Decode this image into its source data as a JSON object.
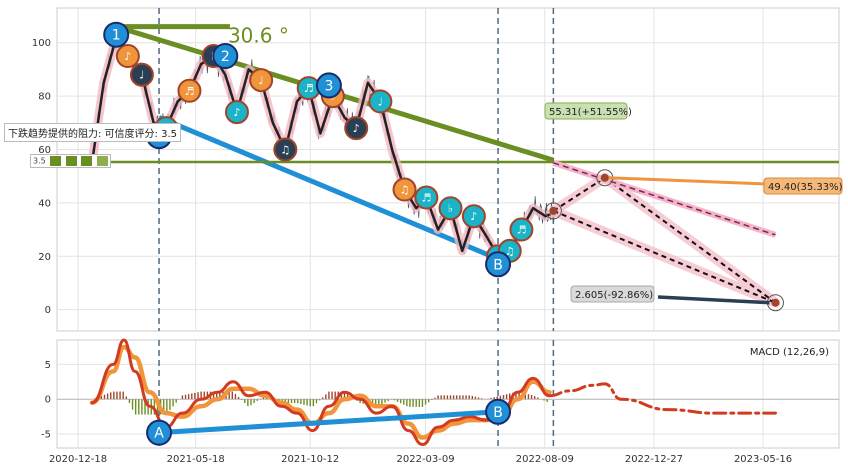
{
  "chart_data": [
    {
      "type": "line",
      "ylim": [
        -8,
        113
      ],
      "yticks": [
        "0",
        "20",
        "40",
        "60",
        "80",
        "100"
      ],
      "price_series": {
        "x": [
          "2021-01-05",
          "2021-01-20",
          "2021-02-05",
          "2021-02-20",
          "2021-03-10",
          "2021-03-25",
          "2021-04-10",
          "2021-04-25",
          "2021-05-10",
          "2021-05-25",
          "2021-06-10",
          "2021-06-25",
          "2021-07-10",
          "2021-07-25",
          "2021-08-10",
          "2021-08-25",
          "2021-09-10",
          "2021-09-25",
          "2021-10-10",
          "2021-10-25",
          "2021-11-10",
          "2021-11-25",
          "2021-12-10",
          "2021-12-25",
          "2022-01-10",
          "2022-01-25",
          "2022-02-10",
          "2022-02-25",
          "2022-03-10",
          "2022-03-25",
          "2022-04-10",
          "2022-04-25",
          "2022-05-10",
          "2022-05-25",
          "2022-06-10",
          "2022-06-25",
          "2022-07-10",
          "2022-07-25",
          "2022-08-10",
          "2022-08-25"
        ],
        "y": [
          55,
          85,
          102,
          95,
          88,
          70,
          68,
          78,
          82,
          92,
          95,
          88,
          74,
          90,
          86,
          70,
          60,
          78,
          83,
          66,
          80,
          72,
          68,
          85,
          78,
          60,
          45,
          38,
          42,
          30,
          38,
          22,
          35,
          28,
          20,
          22,
          30,
          38,
          35,
          37
        ]
      },
      "big_wave_points": [
        {
          "label": "1",
          "x": "2021-02-05",
          "y": 103
        },
        {
          "label": "A",
          "x": "2021-04-01",
          "y": 65
        },
        {
          "label": "2",
          "x": "2021-06-25",
          "y": 95
        },
        {
          "label": "3",
          "x": "2021-11-05",
          "y": 84
        },
        {
          "label": "B",
          "x": "2022-06-10",
          "y": 17
        }
      ],
      "small_wave_count": 19,
      "trend_lines": [
        {
          "name": "resistance",
          "from": {
            "x": "2021-02-05",
            "y": 106
          },
          "to": {
            "x": "2022-08-20",
            "y": 56
          },
          "color": "#6b8e23"
        },
        {
          "name": "support",
          "from": {
            "x": "2021-04-01",
            "y": 72
          },
          "to": {
            "x": "2022-06-10",
            "y": 19
          },
          "color": "#1f8fd6"
        },
        {
          "name": "horizontal",
          "y": 55.31,
          "color": "#6b8e23"
        }
      ],
      "vlines": [
        "2021-04-01",
        "2022-06-10",
        "2022-08-20"
      ],
      "projections": [
        {
          "from": {
            "x": "2022-08-20",
            "y": 37
          },
          "to": {
            "x": "2022-10-25",
            "y": 49.4
          }
        },
        {
          "from": {
            "x": "2022-10-25",
            "y": 49.4
          },
          "to": {
            "x": "2023-06-01",
            "y": 2.605
          }
        },
        {
          "from": {
            "x": "2022-08-20",
            "y": 37
          },
          "to": {
            "x": "2023-06-01",
            "y": 2.605
          }
        },
        {
          "from": {
            "x": "2022-08-20",
            "y": 55
          },
          "to": {
            "x": "2023-06-01",
            "y": 28
          }
        }
      ],
      "annotations": {
        "angle": "30.6 °",
        "resistance_label": "55.31(+51.55%)",
        "mid_target": "49.40(35.33%)",
        "low_target": "2.605(-92.86%)",
        "resist_text": "下跌趋势提供的阻力: 可信度评分: 3.5",
        "score_text": "3.5"
      },
      "colors": {
        "resistance": "#6b8e23",
        "support": "#1f8fd6",
        "target_band": "#f4b6c2",
        "price": "#4a5a6a"
      }
    },
    {
      "type": "line",
      "title": "MACD (12,26,9)",
      "ylim": [
        -7,
        8.5
      ],
      "yticks": [
        "-5",
        "0",
        "5"
      ],
      "x_tick_labels": [
        "2020-12-18",
        "2021-05-18",
        "2021-10-12",
        "2022-03-09",
        "2022-08-09",
        "2022-12-27",
        "2023-05-16"
      ],
      "dif": {
        "x": [
          "2021-01-05",
          "2021-02-01",
          "2021-02-15",
          "2021-03-01",
          "2021-03-20",
          "2021-04-10",
          "2021-05-01",
          "2021-05-25",
          "2021-06-15",
          "2021-07-05",
          "2021-07-25",
          "2021-08-15",
          "2021-09-05",
          "2021-09-25",
          "2021-10-15",
          "2021-11-05",
          "2021-11-25",
          "2021-12-15",
          "2022-01-05",
          "2022-01-25",
          "2022-02-15",
          "2022-03-05",
          "2022-03-25",
          "2022-04-15",
          "2022-05-05",
          "2022-05-25",
          "2022-06-15",
          "2022-07-05",
          "2022-07-25",
          "2022-08-15"
        ],
        "y": [
          -0.5,
          5,
          8.5,
          4,
          -1,
          -4,
          -2,
          0,
          1,
          2.5,
          0.5,
          1,
          -1,
          -2,
          -4.5,
          -1,
          1,
          0,
          -2,
          -1,
          -4.5,
          -6.5,
          -4,
          -3,
          -2.5,
          -3,
          -2,
          1,
          3,
          0.5
        ]
      },
      "dea": {
        "x": [
          "2021-01-05",
          "2021-02-01",
          "2021-02-15",
          "2021-03-01",
          "2021-03-20",
          "2021-04-10",
          "2021-05-01",
          "2021-05-25",
          "2021-06-15",
          "2021-07-05",
          "2021-07-25",
          "2021-08-15",
          "2021-09-05",
          "2021-09-25",
          "2021-10-15",
          "2021-11-05",
          "2021-11-25",
          "2021-12-15",
          "2022-01-05",
          "2022-01-25",
          "2022-02-15",
          "2022-03-05",
          "2022-03-25",
          "2022-04-15",
          "2022-05-05",
          "2022-05-25",
          "2022-06-15",
          "2022-07-05",
          "2022-07-25",
          "2022-08-15"
        ],
        "y": [
          -0.5,
          4,
          7.5,
          6,
          1,
          -2,
          -2.5,
          -1,
          0,
          1.5,
          1.5,
          0.5,
          -0.5,
          -1.5,
          -3.5,
          -2,
          0,
          0.5,
          -1,
          -1,
          -3.5,
          -5.5,
          -4.5,
          -3.5,
          -3,
          -3,
          -2.5,
          0,
          2.5,
          1
        ]
      },
      "forecast": {
        "x": [
          "2022-08-15",
          "2022-09-10",
          "2022-10-10",
          "2022-10-25",
          "2022-11-15",
          "2023-01-15",
          "2023-03-15",
          "2023-06-01"
        ],
        "y": [
          0.5,
          1.2,
          2,
          2.2,
          0,
          -1.5,
          -2,
          -2
        ]
      },
      "divergence_line": {
        "from": {
          "x": "2021-04-01",
          "y": -4.8
        },
        "to": {
          "x": "2022-06-10",
          "y": -1.8
        },
        "labels": [
          "A",
          "B"
        ]
      },
      "vlines": [
        "2021-04-01",
        "2022-06-10",
        "2022-08-20"
      ]
    }
  ]
}
